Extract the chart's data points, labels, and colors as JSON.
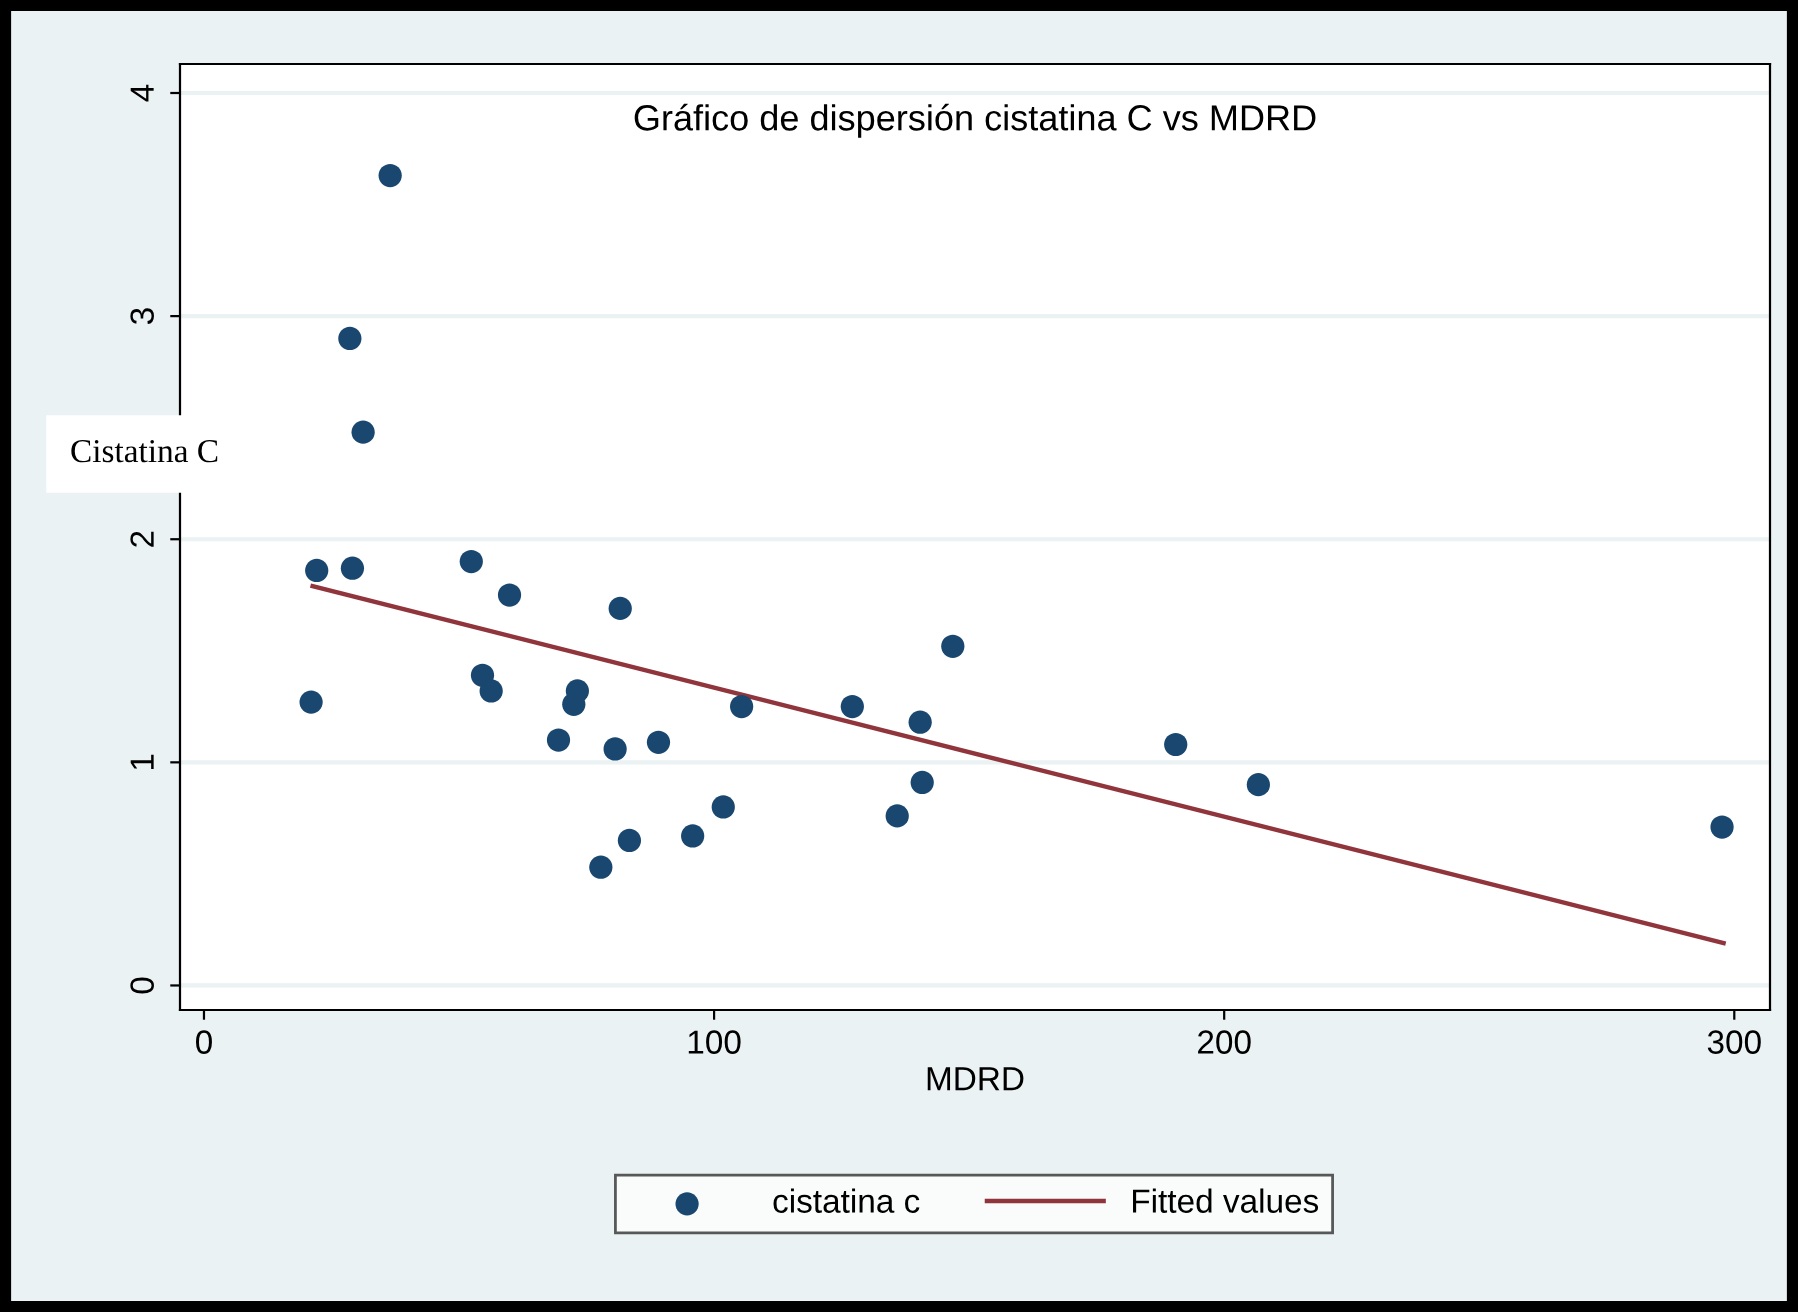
{
  "chart_data": {
    "type": "scatter",
    "title": "Gráfico de dispersión cistatina C vs MDRD",
    "xlabel": "MDRD",
    "ylabel": "Cistatina C",
    "xlim": [
      -4.7,
      307
    ],
    "ylim": [
      -0.11,
      4.13
    ],
    "xticks": [
      0,
      100,
      200,
      300
    ],
    "yticks": [
      0,
      1,
      2,
      3,
      4
    ],
    "grid": "y",
    "legend": "bottom",
    "series": [
      {
        "name": "cistatina c",
        "marker": "circle",
        "color": "#1a476f",
        "x": [
          36.5,
          28.6,
          31.2,
          22.1,
          29.1,
          21.0,
          52.4,
          59.9,
          81.6,
          54.6,
          56.3,
          73.2,
          72.5,
          69.5,
          80.6,
          89.1,
          105.4,
          127.1,
          140.4,
          140.8,
          135.9,
          146.8,
          101.8,
          95.8,
          83.4,
          77.8,
          190.5,
          206.7,
          297.6
        ],
        "values": [
          3.63,
          2.9,
          2.48,
          1.86,
          1.87,
          1.27,
          1.9,
          1.75,
          1.69,
          1.39,
          1.32,
          1.32,
          1.26,
          1.1,
          1.06,
          1.09,
          1.25,
          1.25,
          1.18,
          0.91,
          0.76,
          1.52,
          0.8,
          0.67,
          0.65,
          0.53,
          1.08,
          0.9,
          0.71
        ]
      },
      {
        "name": "Fitted values",
        "type": "line",
        "color": "#90353b",
        "x": [
          21.3,
          297.9
        ],
        "values": [
          1.79,
          0.19
        ]
      }
    ]
  }
}
